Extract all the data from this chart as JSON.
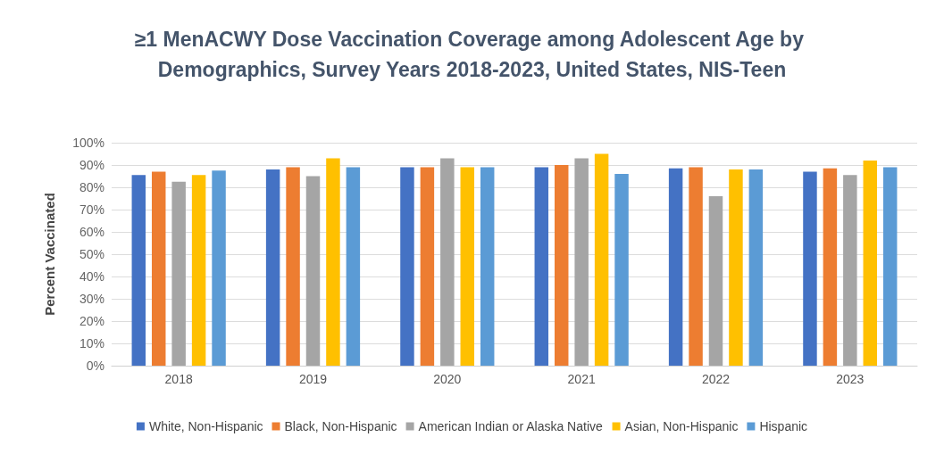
{
  "chart_data": {
    "type": "bar",
    "title": "≥1 MenACWY Dose Vaccination Coverage among Adolescent Age by Demographics, Survey Years 2018-2023, United States, NIS-Teen",
    "ylabel": "Percent Vaccinated",
    "categories": [
      "2018",
      "2019",
      "2020",
      "2021",
      "2022",
      "2023"
    ],
    "series": [
      {
        "name": "White, Non-Hispanic",
        "color": "#4472c4",
        "values": [
          85.5,
          88,
          89,
          89,
          88.5,
          87
        ]
      },
      {
        "name": "Black, Non-Hispanic",
        "color": "#ed7d31",
        "values": [
          87,
          89,
          89,
          90,
          89,
          88.5
        ]
      },
      {
        "name": "American Indian or Alaska Native",
        "color": "#a5a5a5",
        "values": [
          82.5,
          85,
          93,
          93,
          76,
          85.5
        ]
      },
      {
        "name": "Asian, Non-Hispanic",
        "color": "#ffc000",
        "values": [
          85.5,
          93,
          89,
          95,
          88,
          92
        ]
      },
      {
        "name": "Hispanic",
        "color": "#5b9bd5",
        "values": [
          87.5,
          89,
          89,
          86,
          88,
          89
        ]
      }
    ],
    "ylim": [
      0,
      100
    ],
    "yticks": [
      {
        "value": 0,
        "label": "0%"
      },
      {
        "value": 10,
        "label": "10%"
      },
      {
        "value": 20,
        "label": "20%"
      },
      {
        "value": 30,
        "label": "30%"
      },
      {
        "value": 40,
        "label": "40%"
      },
      {
        "value": 50,
        "label": "50%"
      },
      {
        "value": 60,
        "label": "60%"
      },
      {
        "value": 70,
        "label": "70%"
      },
      {
        "value": 80,
        "label": "80%"
      },
      {
        "value": 90,
        "label": "90%"
      },
      {
        "value": 100,
        "label": "100%"
      }
    ],
    "grid": "y",
    "legend": "bottom"
  }
}
